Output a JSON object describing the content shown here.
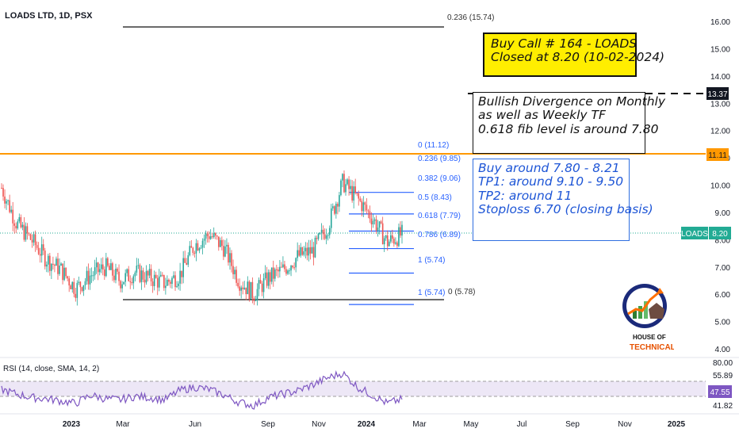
{
  "header": {
    "title": "LOADS LTD, 1D, PSX"
  },
  "colors": {
    "up": "#26a69a",
    "down": "#ef5350",
    "orange": "#ff9800",
    "fib_blue": "#2962ff",
    "rsi_line": "#7e57c2",
    "rsi_band": "#ede7f6",
    "last_price_badge": "#22ab94"
  },
  "price_axis": {
    "ticks": [
      "16.00",
      "15.00",
      "14.00",
      "13.00",
      "12.00",
      "11.00",
      "10.00",
      "9.00",
      "8.00",
      "7.00",
      "6.00",
      "5.00",
      "4.00"
    ]
  },
  "time_axis": {
    "ticks": [
      "2023",
      "Mar",
      "Jun",
      "Sep",
      "Nov",
      "2024",
      "Mar",
      "May",
      "Jul",
      "Sep",
      "Nov",
      "2025"
    ]
  },
  "badges": {
    "target": "13.37",
    "resistance": "11.11",
    "symbol": "LOADS",
    "last": "8.20",
    "rsi": "47.55"
  },
  "fib": {
    "top_label": "0 (11.12)",
    "levels": [
      {
        "label": "0.236 (9.85)",
        "value": 9.85
      },
      {
        "label": "0.382 (9.06)",
        "value": 9.06
      },
      {
        "label": "0.5 (8.43)",
        "value": 8.43
      },
      {
        "label": "0.618 (7.79)",
        "value": 7.79
      },
      {
        "label": "0.786 (6.89)",
        "value": 6.89
      },
      {
        "label": "1 (5.74)",
        "value": 5.74
      }
    ],
    "extra_top": "0.236 (15.74)",
    "extra_bottom": "0 (5.78)"
  },
  "annotations": {
    "call": [
      "Buy Call # 164 - LOADS",
      "Closed at 8.20 (10-02-2024)"
    ],
    "note": [
      "Bullish Divergence on Monthly",
      "as well as Weekly TF",
      "0.618 fib level is around 7.80"
    ],
    "plan": [
      "Buy around 7.80 - 8.21",
      "TP1: around 9.10 - 9.50",
      "TP2: around 11",
      "Stoploss 6.70 (closing basis)"
    ]
  },
  "rsi": {
    "label": "RSI (14, close, SMA, 14, 2)",
    "ticks": [
      "80.00",
      "55.89",
      "41.82"
    ]
  },
  "logo": {
    "line1": "HOUSE OF",
    "line2": "TECHNICALS"
  },
  "chart_data": {
    "type": "candlestick",
    "title": "LOADS LTD, 1D, PSX",
    "ylim": [
      4,
      16
    ],
    "x": [
      "2022-12",
      "2023-01",
      "2023-01",
      "2023-02",
      "2023-02",
      "2023-03",
      "2023-03",
      "2023-04",
      "2023-04",
      "2023-05",
      "2023-05",
      "2023-06",
      "2023-06",
      "2023-07",
      "2023-07",
      "2023-08",
      "2023-08",
      "2023-09",
      "2023-09",
      "2023-10",
      "2023-10",
      "2023-11",
      "2023-11",
      "2023-12",
      "2023-12",
      "2024-01",
      "2024-01",
      "2024-02"
    ],
    "close": [
      9.9,
      8.6,
      8.0,
      7.3,
      6.9,
      6.2,
      6.7,
      7.0,
      6.5,
      6.8,
      6.6,
      6.4,
      6.7,
      7.8,
      8.2,
      7.7,
      6.5,
      6.0,
      6.6,
      6.9,
      7.4,
      7.6,
      8.5,
      10.1,
      9.5,
      8.8,
      7.9,
      8.2
    ],
    "last": 8.2,
    "rsi": [
      56,
      52,
      49,
      48,
      46,
      44,
      51,
      48,
      47,
      50,
      49,
      47,
      55,
      58,
      56,
      51,
      45,
      42,
      49,
      52,
      55,
      60,
      66,
      70,
      58,
      51,
      44,
      47.55
    ]
  }
}
